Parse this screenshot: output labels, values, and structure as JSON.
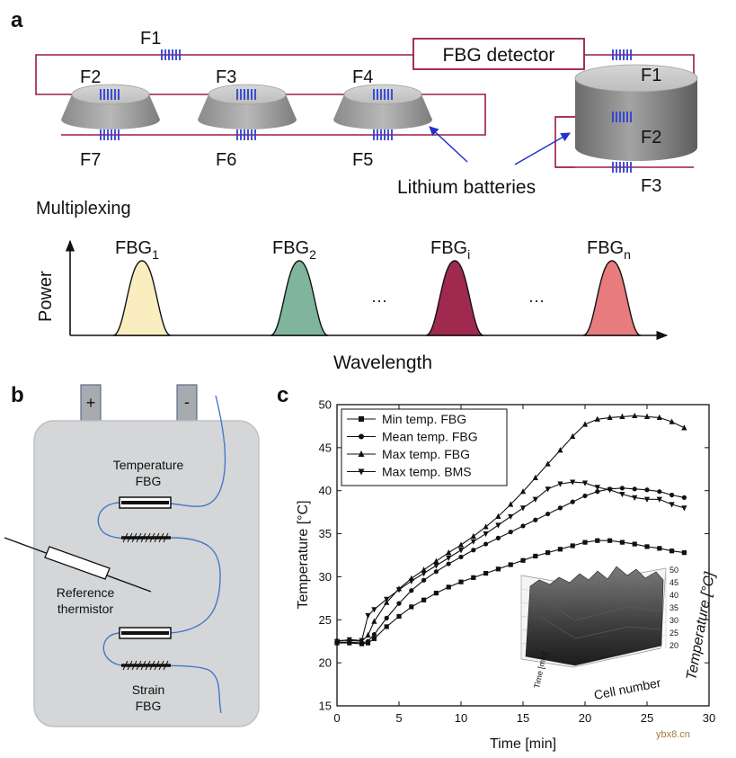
{
  "panel_a": {
    "label": "a",
    "detector": "FBG detector",
    "left_fbgs": [
      "F1",
      "F2",
      "F3",
      "F4",
      "F5",
      "F6",
      "F7"
    ],
    "right_fbgs": [
      "F1",
      "F2",
      "F3"
    ],
    "batteries_label": "Lithium batteries",
    "multiplexing_label": "Multiplexing",
    "y_axis": "Power",
    "x_axis": "Wavelength",
    "peaks": [
      {
        "base": "FBG",
        "sub": "1",
        "color": "#faeec0"
      },
      {
        "base": "FBG",
        "sub": "2",
        "color": "#7fb59d"
      },
      {
        "base": "FBG",
        "sub": "i",
        "color": "#a0294f"
      },
      {
        "base": "FBG",
        "sub": "n",
        "color": "#e77b7e"
      }
    ],
    "ellipsis": "···"
  },
  "panel_b": {
    "label": "b",
    "plus": "+",
    "minus": "-",
    "temperature_fbg": [
      "Temperature",
      "FBG"
    ],
    "reference_thermistor": [
      "Reference",
      "thermistor"
    ],
    "strain_fbg": [
      "Strain",
      "FBG"
    ]
  },
  "panel_c": {
    "label": "c",
    "inset": {
      "x_label": "Cell number",
      "y_label": "Time [min]",
      "z_label": "Temperature [°C]",
      "z_ticks": [
        "50",
        "45",
        "40",
        "35",
        "30",
        "25",
        "20"
      ]
    },
    "watermark": "ybx8.cn"
  },
  "chart_data": {
    "type": "line",
    "xlabel": "Time [min]",
    "ylabel": "Temperature [°C]",
    "xlim": [
      0,
      30
    ],
    "ylim": [
      15,
      50
    ],
    "xticks": [
      0,
      5,
      10,
      15,
      20,
      25,
      30
    ],
    "yticks": [
      15,
      20,
      25,
      30,
      35,
      40,
      45,
      50
    ],
    "legend_position": "top-left",
    "series": [
      {
        "name": "Min temp. FBG",
        "marker": "square",
        "x": [
          0,
          1,
          2,
          2.5,
          3,
          4,
          5,
          6,
          7,
          8,
          9,
          10,
          11,
          12,
          13,
          14,
          15,
          16,
          17,
          18,
          19,
          20,
          21,
          22,
          23,
          24,
          25,
          26,
          27,
          28
        ],
        "y": [
          22.3,
          22.3,
          22.2,
          22.3,
          22.8,
          24.2,
          25.4,
          26.5,
          27.3,
          28.1,
          28.8,
          29.4,
          29.9,
          30.4,
          30.9,
          31.4,
          31.9,
          32.4,
          32.8,
          33.2,
          33.6,
          34.0,
          34.2,
          34.2,
          34.0,
          33.8,
          33.5,
          33.3,
          33.0,
          32.8
        ]
      },
      {
        "name": "Mean temp. FBG",
        "marker": "circle",
        "x": [
          0,
          1,
          2,
          2.5,
          3,
          4,
          5,
          6,
          7,
          8,
          9,
          10,
          11,
          12,
          13,
          14,
          15,
          16,
          17,
          18,
          19,
          20,
          21,
          22,
          23,
          24,
          25,
          26,
          27,
          28
        ],
        "y": [
          22.4,
          22.4,
          22.3,
          22.5,
          23.3,
          25.2,
          26.9,
          28.4,
          29.6,
          30.6,
          31.5,
          32.3,
          33.1,
          33.8,
          34.5,
          35.2,
          35.9,
          36.6,
          37.3,
          38.0,
          38.7,
          39.4,
          39.9,
          40.2,
          40.3,
          40.2,
          40.1,
          39.9,
          39.5,
          39.2
        ]
      },
      {
        "name": "Max temp. FBG",
        "marker": "triangle-up",
        "x": [
          0,
          1,
          2,
          2.5,
          3,
          4,
          5,
          6,
          7,
          8,
          9,
          10,
          11,
          12,
          13,
          14,
          15,
          16,
          17,
          18,
          19,
          20,
          21,
          22,
          23,
          24,
          25,
          26,
          27,
          28
        ],
        "y": [
          22.6,
          22.6,
          22.5,
          23.2,
          24.8,
          27.0,
          28.6,
          29.8,
          30.8,
          31.8,
          32.8,
          33.7,
          34.7,
          35.8,
          37.0,
          38.4,
          39.9,
          41.5,
          43.1,
          44.7,
          46.3,
          47.7,
          48.3,
          48.5,
          48.6,
          48.7,
          48.6,
          48.5,
          48.0,
          47.3
        ]
      },
      {
        "name": "Max temp. BMS",
        "marker": "triangle-down",
        "x": [
          0,
          1,
          2,
          2.5,
          3,
          4,
          5,
          6,
          7,
          8,
          9,
          10,
          11,
          12,
          13,
          14,
          15,
          16,
          17,
          18,
          19,
          20,
          21,
          22,
          23,
          24,
          25,
          26,
          27,
          28
        ],
        "y": [
          22.5,
          22.7,
          22.6,
          25.5,
          26.2,
          27.4,
          28.5,
          29.5,
          30.4,
          31.3,
          32.2,
          33.1,
          34.1,
          35.0,
          36.0,
          37.0,
          38.0,
          39.0,
          40.2,
          40.8,
          41.0,
          40.9,
          40.4,
          40.1,
          39.6,
          39.2,
          39.0,
          39.0,
          38.4,
          38.0
        ]
      }
    ]
  }
}
